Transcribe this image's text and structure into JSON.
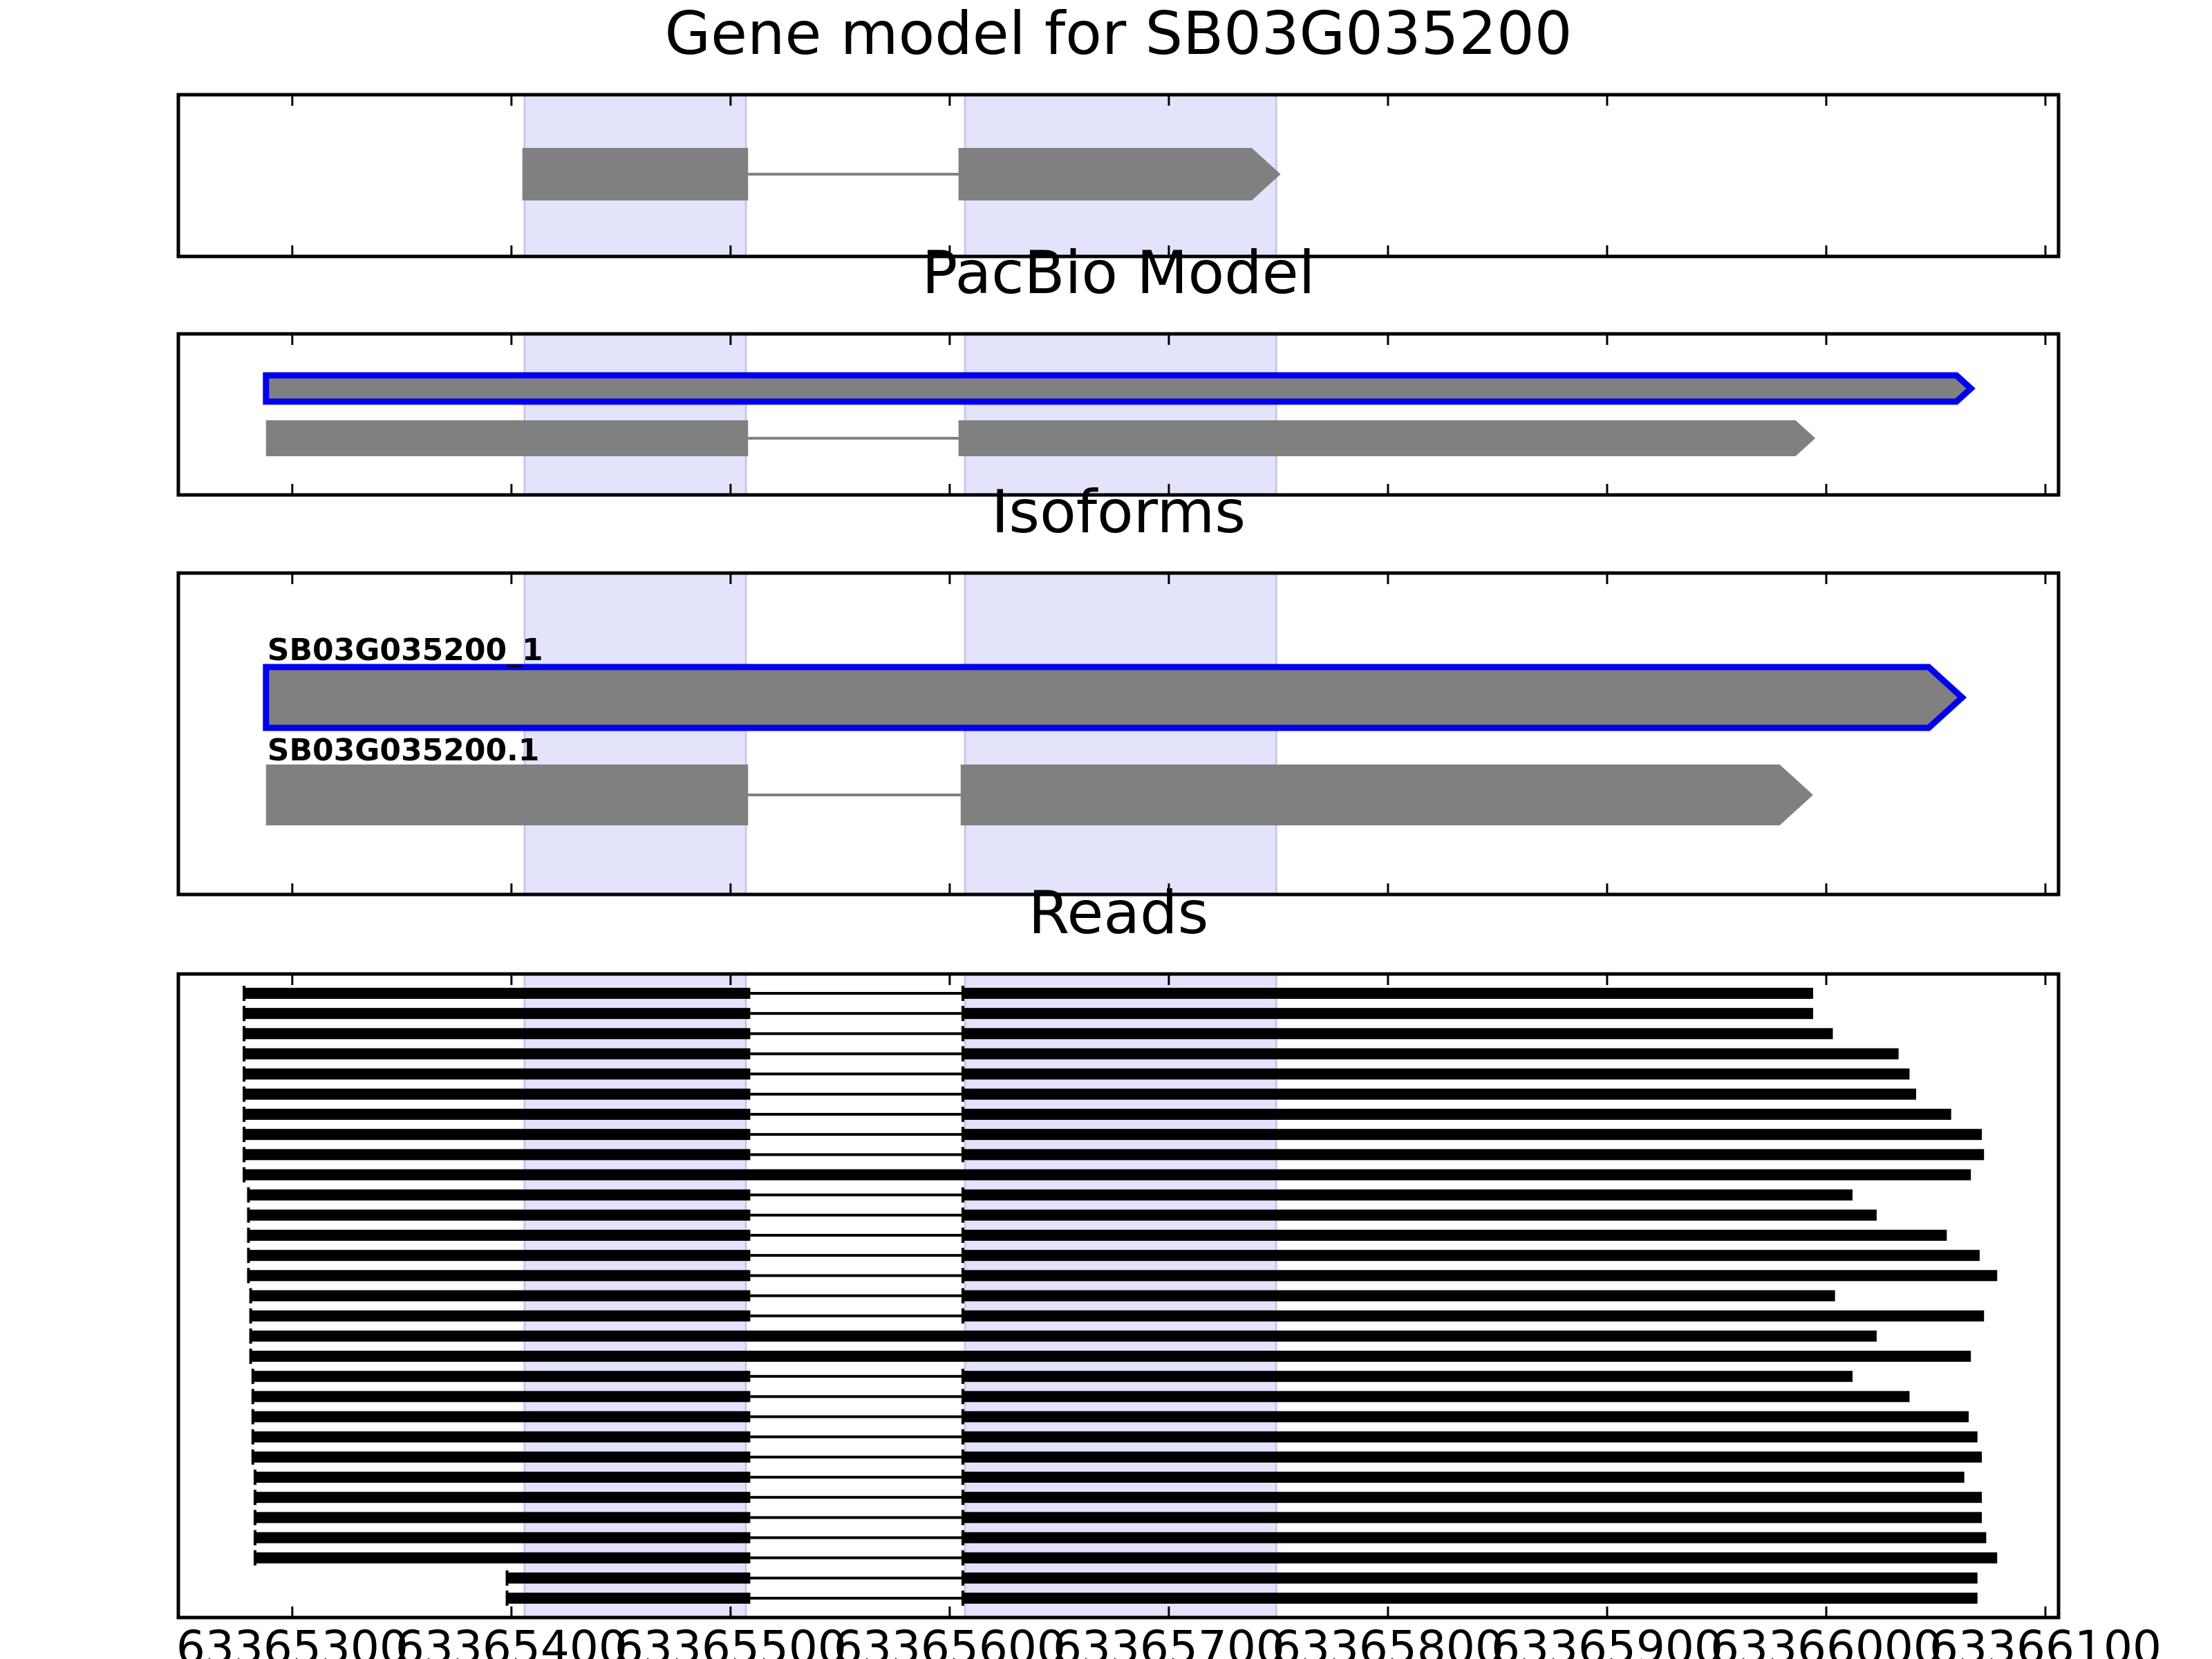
{
  "chart_data": {
    "type": "gene-track",
    "x_ticks": [
      63365300,
      63365400,
      63365500,
      63365600,
      63365700,
      63365800,
      63365900,
      63366000,
      63366100
    ],
    "xlim": [
      63365248,
      63366106
    ],
    "highlight_regions": [
      [
        63365406,
        63365507
      ],
      [
        63365607,
        63365749
      ]
    ],
    "colors": {
      "exon": "#808080",
      "highlight": "#e3e3fb",
      "selected_outline": "#0000ee",
      "read": "#000000",
      "intron": "#808080"
    },
    "panels": [
      {
        "title": "Gene model for SB03G035200",
        "tracks": [
          {
            "exons": [
              [
                63365405,
                63365508
              ],
              [
                63365604,
                63365751
              ]
            ]
          }
        ]
      },
      {
        "title": "PacBio Model",
        "tracks": [
          {
            "selected": true,
            "exons": [
              [
                63365288,
                63366066
              ]
            ]
          },
          {
            "exons": [
              [
                63365288,
                63365508
              ],
              [
                63365604,
                63365995
              ]
            ]
          }
        ]
      },
      {
        "title": "Isoforms",
        "tracks": [
          {
            "label": "SB03G035200_1",
            "selected": true,
            "exons": [
              [
                63365288,
                63366062
              ]
            ]
          },
          {
            "label": "SB03G035200.1",
            "exons": [
              [
                63365288,
                63365508
              ],
              [
                63365605,
                63365994
              ]
            ]
          }
        ]
      },
      {
        "title": "Reads",
        "reads": [
          {
            "exons": [
              [
                63365278,
                63365509
              ],
              [
                63365606,
                63365994
              ]
            ]
          },
          {
            "exons": [
              [
                63365278,
                63365509
              ],
              [
                63365606,
                63365994
              ]
            ]
          },
          {
            "exons": [
              [
                63365278,
                63365509
              ],
              [
                63365606,
                63366003
              ]
            ]
          },
          {
            "exons": [
              [
                63365278,
                63365509
              ],
              [
                63365606,
                63366033
              ]
            ]
          },
          {
            "exons": [
              [
                63365278,
                63365509
              ],
              [
                63365606,
                63366038
              ]
            ]
          },
          {
            "exons": [
              [
                63365278,
                63365509
              ],
              [
                63365606,
                63366041
              ]
            ]
          },
          {
            "exons": [
              [
                63365278,
                63365509
              ],
              [
                63365606,
                63366057
              ]
            ]
          },
          {
            "exons": [
              [
                63365278,
                63365509
              ],
              [
                63365606,
                63366071
              ]
            ]
          },
          {
            "exons": [
              [
                63365278,
                63365509
              ],
              [
                63365606,
                63366072
              ]
            ]
          },
          {
            "exons": [
              [
                63365278,
                63366066
              ]
            ]
          },
          {
            "exons": [
              [
                63365280,
                63365509
              ],
              [
                63365606,
                63366012
              ]
            ]
          },
          {
            "exons": [
              [
                63365280,
                63365509
              ],
              [
                63365606,
                63366023
              ]
            ]
          },
          {
            "exons": [
              [
                63365280,
                63365509
              ],
              [
                63365606,
                63366055
              ]
            ]
          },
          {
            "exons": [
              [
                63365280,
                63365509
              ],
              [
                63365606,
                63366070
              ]
            ]
          },
          {
            "exons": [
              [
                63365280,
                63365509
              ],
              [
                63365606,
                63366078
              ]
            ]
          },
          {
            "exons": [
              [
                63365281,
                63365509
              ],
              [
                63365606,
                63366004
              ]
            ]
          },
          {
            "exons": [
              [
                63365281,
                63365509
              ],
              [
                63365606,
                63366072
              ]
            ]
          },
          {
            "exons": [
              [
                63365281,
                63366023
              ]
            ]
          },
          {
            "exons": [
              [
                63365281,
                63366066
              ]
            ]
          },
          {
            "exons": [
              [
                63365282,
                63365509
              ],
              [
                63365606,
                63366012
              ]
            ]
          },
          {
            "exons": [
              [
                63365282,
                63365509
              ],
              [
                63365606,
                63366038
              ]
            ]
          },
          {
            "exons": [
              [
                63365282,
                63365509
              ],
              [
                63365606,
                63366065
              ]
            ]
          },
          {
            "exons": [
              [
                63365282,
                63365509
              ],
              [
                63365606,
                63366069
              ]
            ]
          },
          {
            "exons": [
              [
                63365282,
                63365509
              ],
              [
                63365606,
                63366071
              ]
            ]
          },
          {
            "exons": [
              [
                63365283,
                63365509
              ],
              [
                63365606,
                63366063
              ]
            ]
          },
          {
            "exons": [
              [
                63365283,
                63365509
              ],
              [
                63365606,
                63366071
              ]
            ]
          },
          {
            "exons": [
              [
                63365283,
                63365509
              ],
              [
                63365606,
                63366071
              ]
            ]
          },
          {
            "exons": [
              [
                63365283,
                63365509
              ],
              [
                63365606,
                63366073
              ]
            ]
          },
          {
            "exons": [
              [
                63365283,
                63365509
              ],
              [
                63365606,
                63366078
              ]
            ]
          },
          {
            "exons": [
              [
                63365398,
                63365509
              ],
              [
                63365606,
                63366069
              ]
            ]
          },
          {
            "exons": [
              [
                63365398,
                63365509
              ],
              [
                63365606,
                63366069
              ]
            ]
          }
        ]
      }
    ]
  }
}
